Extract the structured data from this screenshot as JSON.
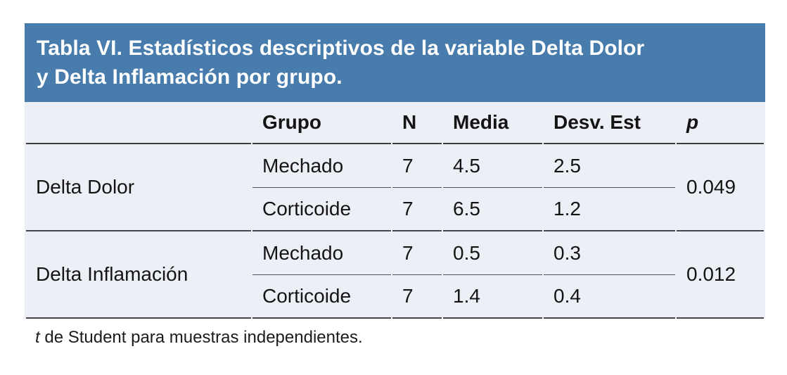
{
  "table": {
    "title_lines": [
      "Tabla VI. Estadísticos descriptivos de la variable Delta Dolor",
      "y Delta Inflamación por grupo."
    ],
    "columns": {
      "grupo": "Grupo",
      "n": "N",
      "media": "Media",
      "desv": "Desv. Est",
      "p": "p"
    },
    "sections": [
      {
        "label": "Delta Dolor",
        "p": "0.049",
        "rows": [
          {
            "grupo": "Mechado",
            "n": "7",
            "media": "4.5",
            "desv": "2.5"
          },
          {
            "grupo": "Corticoide",
            "n": "7",
            "media": "6.5",
            "desv": "1.2"
          }
        ]
      },
      {
        "label": "Delta Inflamación",
        "p": "0.012",
        "rows": [
          {
            "grupo": "Mechado",
            "n": "7",
            "media": "0.5",
            "desv": "0.3"
          },
          {
            "grupo": "Corticoide",
            "n": "7",
            "media": "1.4",
            "desv": "0.4"
          }
        ]
      }
    ],
    "footnote": {
      "prefix": "t",
      "rest": " de Student para muestras independientes."
    }
  },
  "colors": {
    "header_bg": "#487CAD",
    "body_bg": "#EDEFF6",
    "rule": "#474747"
  }
}
